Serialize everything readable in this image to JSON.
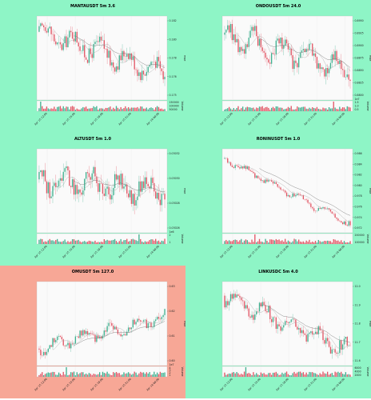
{
  "colors": {
    "panel_green": "#8ef5c6",
    "panel_red": "#f7a796",
    "plot_bg": "#fafafa",
    "grid": "#e6e6e6",
    "up": "#3fb08f",
    "down": "#e25564",
    "ma1": "#a9a9a9",
    "ma2": "#6f6f6f"
  },
  "chart_data": [
    {
      "type": "candlestick",
      "title": "MANTAUSDT 5m 3.6",
      "background": "green",
      "price_axis_label": "Price",
      "volume_axis_label": "Volume",
      "price_ticks": [
        "0.182",
        "0.180",
        "0.178",
        "0.176",
        "0.175"
      ],
      "volume_ticks": [
        "150000",
        "100000",
        "50000"
      ],
      "x_ticks": [
        "Apr 15 12:00",
        "Apr 15 15:00",
        "Apr 15 18:00",
        "Apr 15 21:00",
        "Apr 16 00:00"
      ],
      "ylim": [
        0.1745,
        0.1825
      ],
      "start": 0.1812,
      "end": 0.177,
      "wave": 0.0006,
      "volume_spike_index": 1
    },
    {
      "type": "candlestick",
      "title": "ONDOUSDT 5m 24.0",
      "background": "green",
      "price_axis_label": "Price",
      "volume_axis_label": "Volume",
      "volume_multiplier": "1e7",
      "price_ticks": [
        "0.8950",
        "0.8925",
        "0.8900",
        "0.8875",
        "0.8850",
        "0.8825",
        "0.8800"
      ],
      "volume_ticks": [
        "1.5",
        "1.0",
        "0.5"
      ],
      "x_ticks": [
        "Apr 15 12:00",
        "Apr 15 15:00",
        "Apr 15 18:00",
        "Apr 15 21:00",
        "Apr 16 00:00"
      ],
      "ylim": [
        0.879,
        0.8965
      ],
      "start": 0.893,
      "end": 0.885,
      "wave": 0.0015,
      "volume_spike_index": 72
    },
    {
      "type": "candlestick",
      "title": "ALTUSDT 5m 1.0",
      "background": "green",
      "price_axis_label": "Price",
      "volume_axis_label": "Volume",
      "volume_multiplier": "1e6",
      "price_ticks": [
        "0.03032",
        "0.03030",
        "0.03028",
        "0.03026"
      ],
      "volume_ticks": [
        "2",
        "1"
      ],
      "x_ticks": [
        "Apr 15 12:00",
        "Apr 15 15:00",
        "Apr 15 18:00",
        "Apr 15 21:00",
        "Apr 16 00:00"
      ],
      "ylim": [
        0.03025,
        0.030335
      ],
      "start": 0.030305,
      "end": 0.030292,
      "wave": 8e-06,
      "volume_spike_index": 66
    },
    {
      "type": "candlestick",
      "title": "RONINUSDT 5m 1.0",
      "background": "green",
      "price_axis_label": "Price",
      "volume_axis_label": "Volume",
      "price_ticks": [
        "0.986",
        "0.984",
        "0.982",
        "0.980",
        "0.978",
        "0.976",
        "0.974",
        "0.972"
      ],
      "volume_ticks": [
        "200000",
        "100000"
      ],
      "x_ticks": [
        "Apr 15 12:00",
        "Apr 15 15:00",
        "Apr 15 18:00",
        "Apr 15 21:00",
        "Apr 16 00:00"
      ],
      "ylim": [
        0.9705,
        0.9875
      ],
      "start": 0.986,
      "end": 0.9715,
      "wave": 0.0004,
      "volume_spike_index": 20
    },
    {
      "type": "candlestick",
      "title": "OMUSDT 5m 127.0",
      "background": "red",
      "price_axis_label": "Price",
      "volume_axis_label": "Volume",
      "volume_multiplier": "1e7",
      "price_ticks": [
        "0.63",
        "0.62",
        "0.61",
        "0.60"
      ],
      "volume_ticks": [
        "4",
        "3",
        "2",
        "1"
      ],
      "x_ticks": [
        "Apr 15 12:00",
        "Apr 15 15:00",
        "Apr 15 18:00",
        "Apr 15 21:00",
        "Apr 16 00:00"
      ],
      "ylim": [
        0.595,
        0.64
      ],
      "start": 0.603,
      "end": 0.621,
      "wave": 0.002,
      "volume_spike_index": 18
    },
    {
      "type": "candlestick",
      "title": "LINKUSDC 5m 4.0",
      "background": "green",
      "price_axis_label": "Price",
      "volume_axis_label": "Volume",
      "price_ticks": [
        "12.0",
        "11.9",
        "11.8",
        "11.7",
        "11.6"
      ],
      "volume_ticks": [
        "6000",
        "4000",
        "2000"
      ],
      "x_ticks": [
        "Apr 15 12:00",
        "Apr 15 15:00",
        "Apr 15 18:00",
        "Apr 15 21:00",
        "Apr 16 00:00"
      ],
      "ylim": [
        11.55,
        12.05
      ],
      "start": 11.98,
      "end": 11.62,
      "wave": 0.03,
      "volume_spike_index": 14
    }
  ]
}
